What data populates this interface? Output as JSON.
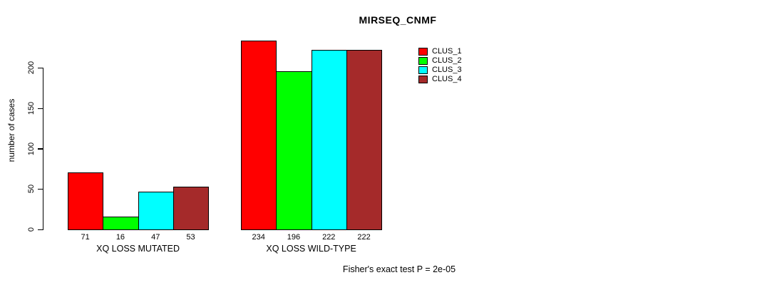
{
  "chart_data": {
    "type": "bar",
    "title": "MIRSEQ_CNMF",
    "xlabel": "",
    "ylabel": "number of cases",
    "categories": [
      "XQ LOSS MUTATED",
      "XQ LOSS WILD-TYPE"
    ],
    "series": [
      {
        "name": "CLUS_1",
        "color": "#ff0000",
        "values": [
          71,
          234
        ]
      },
      {
        "name": "CLUS_2",
        "color": "#00ff00",
        "values": [
          16,
          196
        ]
      },
      {
        "name": "CLUS_3",
        "color": "#00ffff",
        "values": [
          47,
          222
        ]
      },
      {
        "name": "CLUS_4",
        "color": "#a52a2a",
        "values": [
          53,
          222
        ]
      }
    ],
    "yticks": [
      0,
      50,
      100,
      150,
      200
    ],
    "ylim": [
      0,
      240
    ],
    "bar_value_labels": [
      [
        71,
        16,
        47,
        53
      ],
      [
        234,
        196,
        222,
        222
      ]
    ],
    "grid": "off",
    "legend_position": "top-right",
    "annotation": "Fisher's exact test P = 2e-05"
  }
}
